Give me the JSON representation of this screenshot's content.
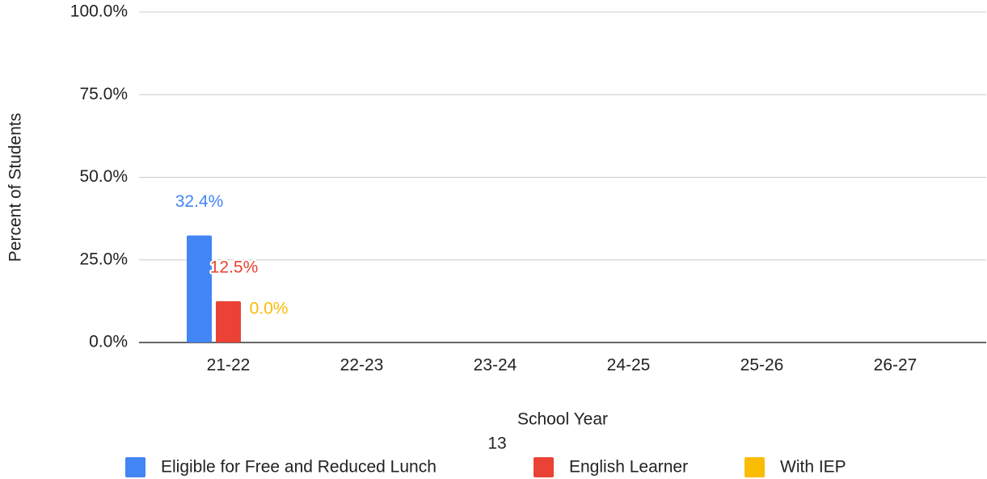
{
  "chart_data": {
    "type": "bar",
    "categories": [
      "21-22",
      "22-23",
      "23-24",
      "24-25",
      "25-26",
      "26-27"
    ],
    "series": [
      {
        "name": "Eligible for Free and Reduced Lunch",
        "color": "#4285f4",
        "values": [
          32.4,
          null,
          null,
          null,
          null,
          null
        ],
        "value_labels": [
          "32.4%",
          null,
          null,
          null,
          null,
          null
        ]
      },
      {
        "name": "English Learner",
        "color": "#ea4335",
        "values": [
          12.5,
          null,
          null,
          null,
          null,
          null
        ],
        "value_labels": [
          "12.5%",
          null,
          null,
          null,
          null,
          null
        ]
      },
      {
        "name": "With IEP",
        "color": "#fbbc04",
        "values": [
          0,
          null,
          null,
          null,
          null,
          null
        ],
        "value_labels": [
          "0.0%",
          null,
          null,
          null,
          null,
          null
        ]
      }
    ],
    "ylim": [
      0,
      100
    ],
    "yticks": [
      {
        "value": 0,
        "label": "0.0%"
      },
      {
        "value": 25,
        "label": "25.0%"
      },
      {
        "value": 50,
        "label": "50.0%"
      },
      {
        "value": 75,
        "label": "75.0%"
      },
      {
        "value": 100,
        "label": "100.0%"
      }
    ],
    "grid": true,
    "xlabel": "School Year",
    "ylabel": "Percent of Students",
    "annotation": "13",
    "legend": "bottom"
  }
}
